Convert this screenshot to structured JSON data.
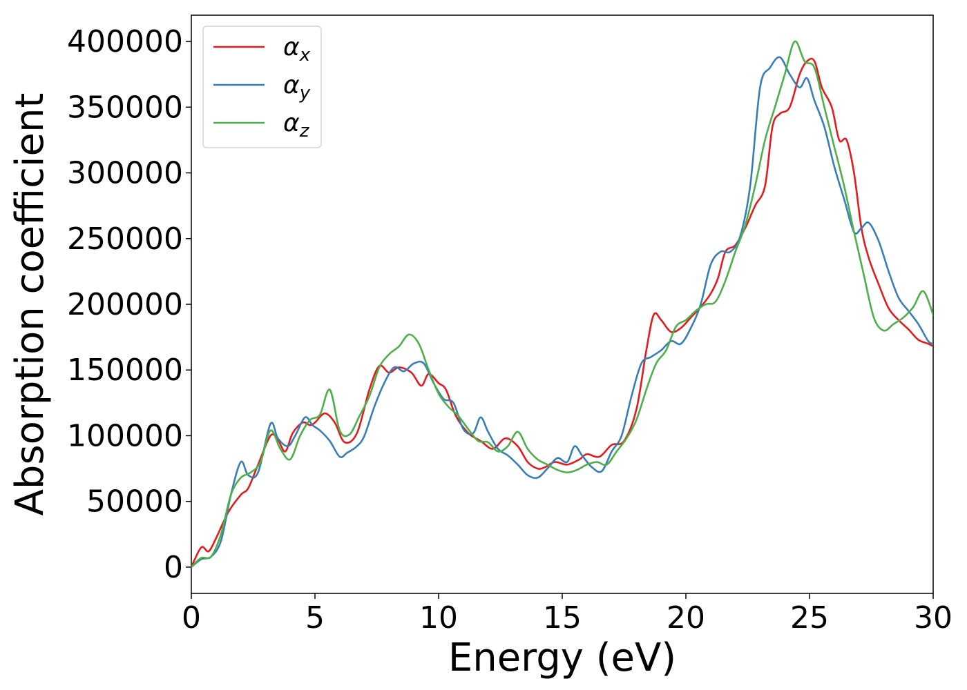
{
  "chart_data": {
    "type": "line",
    "xlabel": "Energy (eV)",
    "ylabel": "Absorption coefficient",
    "xlim": [
      0,
      30
    ],
    "ylim": [
      -20000,
      420000
    ],
    "xticks": [
      0,
      5,
      10,
      15,
      20,
      25,
      30
    ],
    "yticks": [
      0,
      50000,
      100000,
      150000,
      200000,
      250000,
      300000,
      350000,
      400000
    ],
    "grid": false,
    "legend_position": "top-left",
    "series": [
      {
        "name": "α_x",
        "legend_symbol": "α",
        "legend_sub": "x",
        "color": "#e41a1c",
        "x": [
          0,
          0.4,
          0.7,
          1.0,
          1.5,
          2.0,
          2.3,
          2.7,
          3.2,
          3.5,
          3.8,
          4.1,
          4.5,
          4.8,
          5.0,
          5.4,
          5.8,
          6.2,
          6.7,
          7.2,
          7.6,
          8.0,
          8.4,
          8.9,
          9.3,
          9.6,
          10.0,
          10.3,
          10.7,
          11.2,
          11.7,
          12.2,
          12.7,
          13.2,
          13.6,
          14.0,
          14.3,
          14.7,
          15.2,
          15.7,
          16.0,
          16.5,
          17.0,
          17.5,
          18.0,
          18.4,
          18.7,
          19.0,
          19.4,
          19.8,
          20.2,
          20.6,
          21.0,
          21.3,
          21.6,
          22.0,
          22.4,
          22.8,
          23.2,
          23.5,
          23.8,
          24.2,
          24.6,
          24.9,
          25.2,
          25.5,
          25.9,
          26.2,
          26.5,
          26.8,
          27.1,
          27.4,
          27.8,
          28.2,
          28.6,
          29.0,
          29.4,
          29.8,
          30.0
        ],
        "values": [
          0,
          15000,
          12000,
          22000,
          42000,
          55000,
          60000,
          78000,
          100000,
          97000,
          88000,
          102000,
          110000,
          108000,
          110000,
          117000,
          110000,
          95000,
          102000,
          135000,
          153000,
          148000,
          152000,
          148000,
          138000,
          147000,
          140000,
          135000,
          115000,
          102000,
          96000,
          90000,
          98000,
          92000,
          80000,
          75000,
          76000,
          80000,
          78000,
          82000,
          86000,
          84000,
          93000,
          96000,
          120000,
          165000,
          192000,
          188000,
          179000,
          182000,
          190000,
          198000,
          208000,
          220000,
          240000,
          245000,
          258000,
          275000,
          290000,
          335000,
          345000,
          350000,
          375000,
          385000,
          385000,
          365000,
          350000,
          325000,
          325000,
          300000,
          258000,
          235000,
          215000,
          197000,
          188000,
          181000,
          173000,
          170000,
          168000
        ]
      },
      {
        "name": "α_y",
        "legend_symbol": "α",
        "legend_sub": "y",
        "color": "#377eb8",
        "x": [
          0,
          0.4,
          0.8,
          1.2,
          1.6,
          2.0,
          2.3,
          2.7,
          3.2,
          3.5,
          3.9,
          4.2,
          4.6,
          4.9,
          5.2,
          5.6,
          6.0,
          6.3,
          6.7,
          7.0,
          7.4,
          7.8,
          8.2,
          8.6,
          9.0,
          9.4,
          9.8,
          10.2,
          10.6,
          11.0,
          11.4,
          11.7,
          12.0,
          12.4,
          12.8,
          13.2,
          13.6,
          14.0,
          14.4,
          14.8,
          15.2,
          15.5,
          15.8,
          16.2,
          16.6,
          17.0,
          17.4,
          17.8,
          18.2,
          18.6,
          19.0,
          19.4,
          19.8,
          20.2,
          20.6,
          21.0,
          21.4,
          21.8,
          22.2,
          22.6,
          23.0,
          23.4,
          23.8,
          24.2,
          24.6,
          24.9,
          25.2,
          25.6,
          26.0,
          26.4,
          26.8,
          27.1,
          27.4,
          27.8,
          28.2,
          28.6,
          29.0,
          29.4,
          29.8,
          30.0
        ],
        "values": [
          0,
          6000,
          8000,
          20000,
          55000,
          80000,
          70000,
          72000,
          109000,
          98000,
          92000,
          100000,
          114000,
          108000,
          104000,
          96000,
          84000,
          87000,
          92000,
          100000,
          122000,
          140000,
          152000,
          149000,
          155000,
          155000,
          140000,
          128000,
          125000,
          105000,
          102000,
          114000,
          103000,
          90000,
          85000,
          78000,
          70000,
          68000,
          75000,
          83000,
          80000,
          92000,
          85000,
          76000,
          73000,
          88000,
          100000,
          130000,
          155000,
          160000,
          165000,
          172000,
          170000,
          182000,
          200000,
          230000,
          240000,
          240000,
          252000,
          290000,
          365000,
          380000,
          388000,
          375000,
          365000,
          372000,
          355000,
          335000,
          305000,
          280000,
          255000,
          258000,
          262000,
          248000,
          225000,
          205000,
          195000,
          185000,
          172000,
          170000
        ]
      },
      {
        "name": "α_z",
        "legend_symbol": "α",
        "legend_sub": "z",
        "color": "#4daf4a",
        "x": [
          0,
          0.4,
          0.8,
          1.2,
          1.6,
          2.0,
          2.4,
          2.8,
          3.2,
          3.6,
          4.0,
          4.4,
          4.8,
          5.2,
          5.6,
          6.0,
          6.4,
          6.8,
          7.2,
          7.6,
          8.0,
          8.4,
          8.8,
          9.2,
          9.6,
          10.0,
          10.4,
          10.8,
          11.2,
          11.6,
          12.0,
          12.4,
          12.8,
          13.2,
          13.6,
          14.0,
          14.4,
          14.8,
          15.2,
          15.6,
          16.0,
          16.4,
          16.8,
          17.2,
          17.6,
          18.0,
          18.4,
          18.8,
          19.2,
          19.6,
          20.0,
          20.4,
          20.8,
          21.2,
          21.6,
          22.0,
          22.4,
          22.8,
          23.2,
          23.6,
          24.0,
          24.4,
          24.8,
          25.2,
          25.6,
          26.0,
          26.4,
          26.8,
          27.2,
          27.6,
          28.0,
          28.4,
          28.8,
          29.2,
          29.6,
          30.0
        ],
        "values": [
          0,
          7000,
          8000,
          25000,
          55000,
          68000,
          72000,
          80000,
          104000,
          90000,
          82000,
          100000,
          112000,
          116000,
          135000,
          104000,
          101000,
          115000,
          130000,
          152000,
          162000,
          168000,
          177000,
          170000,
          150000,
          132000,
          122000,
          115000,
          105000,
          96000,
          95000,
          88000,
          92000,
          103000,
          90000,
          82000,
          78000,
          74000,
          72000,
          74000,
          78000,
          80000,
          78000,
          88000,
          98000,
          112000,
          135000,
          155000,
          165000,
          183000,
          188000,
          195000,
          200000,
          202000,
          218000,
          240000,
          260000,
          290000,
          325000,
          350000,
          375000,
          400000,
          385000,
          380000,
          350000,
          320000,
          290000,
          255000,
          222000,
          190000,
          180000,
          185000,
          190000,
          198000,
          210000,
          192000
        ]
      }
    ]
  }
}
